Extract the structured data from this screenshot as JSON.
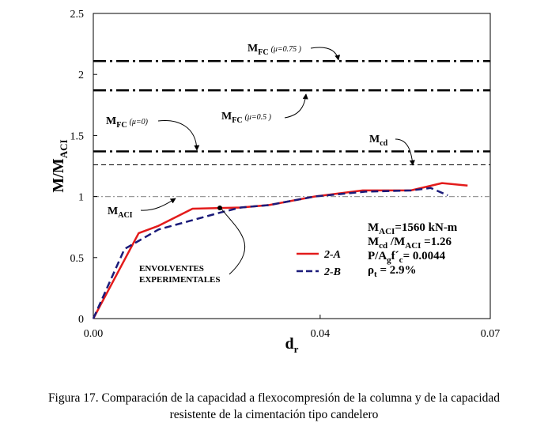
{
  "chart_data": {
    "type": "line",
    "xlabel": "d",
    "xlabel_sub": "r",
    "ylabel": "M/M",
    "ylabel_sub": "ACI",
    "xlim": [
      0,
      0.07
    ],
    "ylim": [
      0,
      2.5
    ],
    "x_ticks": [
      {
        "value": 0,
        "label": "0.00"
      },
      {
        "value": 0.04,
        "label": "0.04"
      },
      {
        "value": 0.07,
        "label": "0.07"
      }
    ],
    "y_ticks": [
      {
        "value": 0,
        "label": "0"
      },
      {
        "value": 0.5,
        "label": "0.5"
      },
      {
        "value": 1,
        "label": "1"
      },
      {
        "value": 1.5,
        "label": "1.5"
      },
      {
        "value": 2,
        "label": "2"
      },
      {
        "value": 2.5,
        "label": "2.5"
      }
    ],
    "series": [
      {
        "name": "2-A",
        "color": "#e31b1b",
        "style": "solid",
        "x": [
          0,
          0.008,
          0.0115,
          0.0175,
          0.026,
          0.031,
          0.039,
          0.0475,
          0.056,
          0.0615,
          0.066
        ],
        "y": [
          0,
          0.7,
          0.76,
          0.9,
          0.91,
          0.93,
          1.0,
          1.05,
          1.05,
          1.11,
          1.09
        ]
      },
      {
        "name": "2-B",
        "color": "#1b1b7a",
        "style": "dashed",
        "x": [
          0,
          0.0055,
          0.0115,
          0.017,
          0.0225,
          0.026,
          0.031,
          0.039,
          0.048,
          0.056,
          0.0595,
          0.0625
        ],
        "y": [
          0,
          0.57,
          0.73,
          0.8,
          0.87,
          0.91,
          0.93,
          1.0,
          1.04,
          1.05,
          1.07,
          1.01
        ]
      }
    ],
    "reference_lines": [
      {
        "y": 2.11,
        "style": "dashdot",
        "color": "#000000"
      },
      {
        "y": 1.87,
        "style": "dashdot",
        "color": "#000000"
      },
      {
        "y": 1.37,
        "style": "dashdot",
        "color": "#000000"
      },
      {
        "y": 1.26,
        "style": "dashed-thin",
        "color": "#000000"
      },
      {
        "y": 1.0,
        "style": "dashdot-gray",
        "color": "#9a9a9a"
      }
    ],
    "annotations": {
      "mfc075": {
        "main": "M",
        "sub": "FC",
        "mu": "(μ=0.75 )"
      },
      "mfc05": {
        "main": "M",
        "sub": "FC",
        "mu": "(μ=0.5 )"
      },
      "mfc0": {
        "main": "M",
        "sub": "FC",
        "mu": "(μ=0)"
      },
      "mcd": {
        "main": "M",
        "sub": "cd"
      },
      "maci": {
        "main": "M",
        "sub": "ACI"
      },
      "envelope_line1": "ENVOLVENTES",
      "envelope_line2": "EXPERIMENTALES"
    },
    "stats": [
      {
        "parts": [
          [
            "M",
            ""
          ],
          [
            "ACI",
            "sub"
          ],
          [
            "=1560 kN-m",
            ""
          ]
        ]
      },
      {
        "parts": [
          [
            "M",
            ""
          ],
          [
            "cd",
            "sub"
          ],
          [
            " /M",
            ""
          ],
          [
            "ACI",
            "sub"
          ],
          [
            " =1.26",
            ""
          ]
        ]
      },
      {
        "parts": [
          [
            "P/A",
            ""
          ],
          [
            "g",
            "sub"
          ],
          [
            "f´",
            ""
          ],
          [
            "c",
            "sub"
          ],
          [
            "= 0.0044",
            ""
          ]
        ]
      },
      {
        "parts": [
          [
            "ρ",
            ""
          ],
          [
            "t",
            "sub"
          ],
          [
            " = 2.9%",
            ""
          ]
        ]
      }
    ],
    "legend": {
      "placement": "right"
    }
  },
  "caption": {
    "line1": "Figura 17. Comparación de la capacidad a flexocompresión de la columna y de la capacidad",
    "line2": "resistente de la cimentación tipo candelero"
  }
}
